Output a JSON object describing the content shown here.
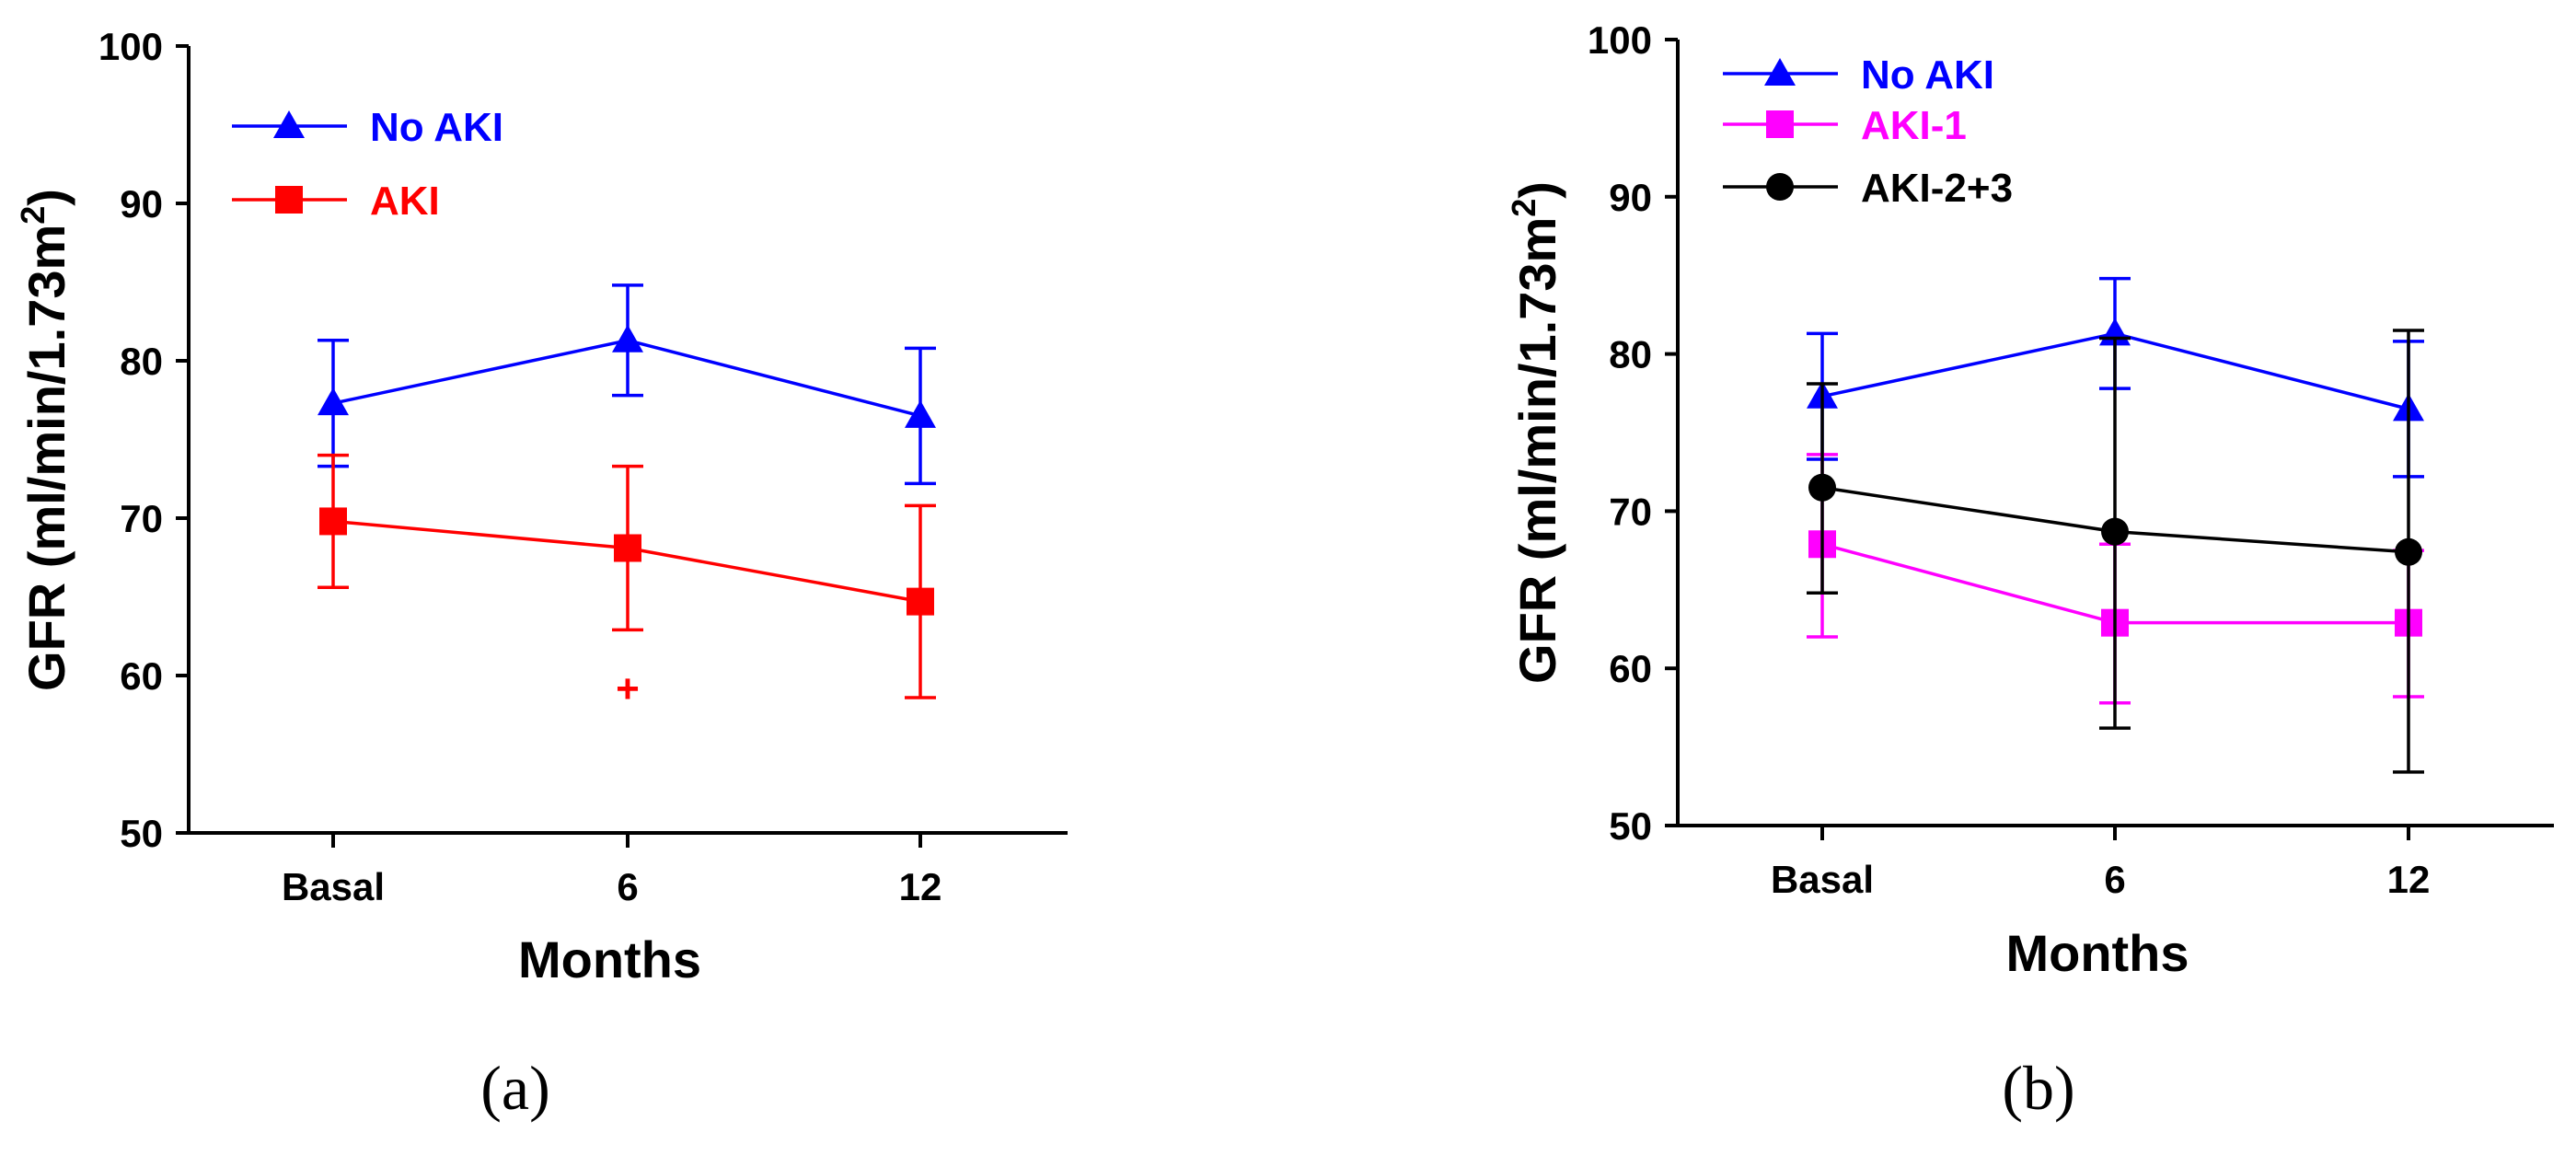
{
  "chart_data": [
    {
      "type": "line",
      "panel_label": "(a)",
      "xlabel": "Months",
      "ylabel": "GFR (ml/min/1.73m²)",
      "ylabel_parts": {
        "main": "GFR (ml/min/1.73m",
        "sup": "2",
        "close": ")"
      },
      "categories": [
        "Basal",
        "6",
        "12"
      ],
      "yticks": [
        "50",
        "60",
        "70",
        "80",
        "90",
        "100"
      ],
      "ylim": [
        50,
        100
      ],
      "grid": false,
      "legend_position": "top-left",
      "annotations": [
        {
          "text": "+",
          "x": "6",
          "y": 59.3,
          "color": "#ff0000"
        }
      ],
      "series": [
        {
          "name": "No AKI",
          "color": "#0000ff",
          "marker": "triangle",
          "values": [
            77.3,
            81.3,
            76.5
          ],
          "err_high": [
            81.3,
            84.8,
            80.8
          ],
          "err_low": [
            73.3,
            77.8,
            72.2
          ]
        },
        {
          "name": "AKI",
          "color": "#ff0000",
          "marker": "square",
          "values": [
            69.8,
            68.1,
            64.7
          ],
          "err_high": [
            74.0,
            73.3,
            70.8
          ],
          "err_low": [
            65.6,
            62.9,
            58.6
          ]
        }
      ]
    },
    {
      "type": "line",
      "panel_label": "(b)",
      "xlabel": "Months",
      "ylabel": "GFR (ml/min/1.73m²)",
      "ylabel_parts": {
        "main": "GFR (ml/min/1.73m",
        "sup": "2",
        "close": ")"
      },
      "categories": [
        "Basal",
        "6",
        "12"
      ],
      "yticks": [
        "50",
        "60",
        "70",
        "80",
        "90",
        "100"
      ],
      "ylim": [
        50,
        100
      ],
      "grid": false,
      "legend_position": "top-left",
      "annotations": [],
      "series": [
        {
          "name": "No AKI",
          "color": "#0000ff",
          "marker": "triangle",
          "values": [
            77.3,
            81.3,
            76.5
          ],
          "err_high": [
            81.3,
            84.8,
            80.8
          ],
          "err_low": [
            73.3,
            77.8,
            72.2
          ]
        },
        {
          "name": "AKI-1",
          "color": "#ff00ff",
          "marker": "square",
          "values": [
            67.9,
            62.9,
            62.9
          ],
          "err_high": [
            73.6,
            67.9,
            67.5
          ],
          "err_low": [
            62.0,
            57.8,
            58.2
          ]
        },
        {
          "name": "AKI-2+3",
          "color": "#000000",
          "marker": "circle",
          "values": [
            71.5,
            68.7,
            67.4
          ],
          "err_high": [
            78.1,
            81.0,
            81.5
          ],
          "err_low": [
            64.8,
            56.2,
            53.4
          ]
        }
      ]
    }
  ]
}
